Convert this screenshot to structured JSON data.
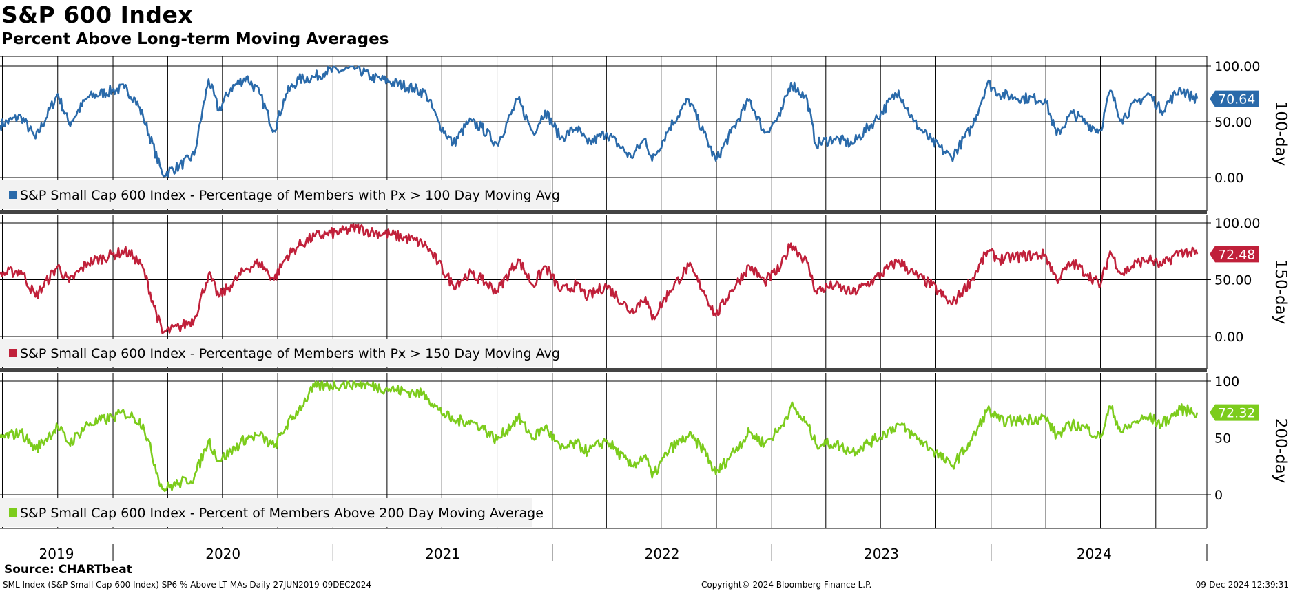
{
  "header": {
    "title": "S&P 600 Index",
    "subtitle": "Percent Above Long-term Moving Averages"
  },
  "footer": {
    "source": "Source: CHARTbeat",
    "description": "SML Index (S&P Small Cap 600 Index) SP6 % Above LT MAs  Daily 27JUN2019-09DEC2024",
    "copyright": "Copyright© 2024 Bloomberg Finance L.P.",
    "timestamp": "09-Dec-2024 12:39:31"
  },
  "chart_data": {
    "type": "line",
    "x_axis": {
      "start": "2019-06-27",
      "end": "2024-12-09",
      "year_labels": [
        "2019",
        "2020",
        "2021",
        "2022",
        "2023",
        "2024"
      ]
    },
    "grid": true,
    "panels": [
      {
        "id": "p100",
        "side_label": "100-day",
        "legend": "S&P Small Cap 600 Index - Percentage of Members with Px > 100 Day Moving Avg",
        "color": "#2a6aaa",
        "y_ticks": [
          "100.00",
          "50.00",
          "0.00"
        ],
        "ylim": [
          -25,
          105
        ],
        "last_value": "70.64",
        "points": [
          [
            "2019-06-27",
            47
          ],
          [
            "2019-08-01",
            55
          ],
          [
            "2019-08-25",
            35
          ],
          [
            "2019-10-01",
            75
          ],
          [
            "2019-10-20",
            48
          ],
          [
            "2019-11-20",
            72
          ],
          [
            "2019-12-31",
            78
          ],
          [
            "2020-01-20",
            80
          ],
          [
            "2020-02-05",
            72
          ],
          [
            "2020-02-20",
            55
          ],
          [
            "2020-03-23",
            3
          ],
          [
            "2020-04-20",
            10
          ],
          [
            "2020-05-15",
            20
          ],
          [
            "2020-06-08",
            88
          ],
          [
            "2020-06-25",
            60
          ],
          [
            "2020-07-15",
            80
          ],
          [
            "2020-08-10",
            90
          ],
          [
            "2020-09-01",
            75
          ],
          [
            "2020-09-25",
            42
          ],
          [
            "2020-10-15",
            75
          ],
          [
            "2020-11-05",
            88
          ],
          [
            "2020-12-01",
            90
          ],
          [
            "2020-12-20",
            95
          ],
          [
            "2021-01-15",
            96
          ],
          [
            "2021-02-10",
            98
          ],
          [
            "2021-03-05",
            90
          ],
          [
            "2021-04-05",
            86
          ],
          [
            "2021-05-15",
            80
          ],
          [
            "2021-06-05",
            75
          ],
          [
            "2021-06-25",
            50
          ],
          [
            "2021-07-20",
            30
          ],
          [
            "2021-08-15",
            50
          ],
          [
            "2021-09-05",
            45
          ],
          [
            "2021-10-01",
            30
          ],
          [
            "2021-11-05",
            70
          ],
          [
            "2021-11-30",
            40
          ],
          [
            "2021-12-20",
            60
          ],
          [
            "2022-01-15",
            35
          ],
          [
            "2022-02-10",
            45
          ],
          [
            "2022-03-01",
            30
          ],
          [
            "2022-04-01",
            40
          ],
          [
            "2022-05-12",
            18
          ],
          [
            "2022-06-05",
            35
          ],
          [
            "2022-06-16",
            15
          ],
          [
            "2022-07-15",
            45
          ],
          [
            "2022-08-16",
            70
          ],
          [
            "2022-09-10",
            40
          ],
          [
            "2022-09-30",
            15
          ],
          [
            "2022-10-25",
            40
          ],
          [
            "2022-11-25",
            70
          ],
          [
            "2022-12-20",
            40
          ],
          [
            "2023-01-15",
            55
          ],
          [
            "2023-02-02",
            85
          ],
          [
            "2023-03-01",
            70
          ],
          [
            "2023-03-15",
            30
          ],
          [
            "2023-04-15",
            35
          ],
          [
            "2023-05-15",
            30
          ],
          [
            "2023-06-20",
            50
          ],
          [
            "2023-07-31",
            78
          ],
          [
            "2023-08-25",
            50
          ],
          [
            "2023-09-25",
            32
          ],
          [
            "2023-10-27",
            18
          ],
          [
            "2023-11-30",
            45
          ],
          [
            "2023-12-26",
            85
          ],
          [
            "2024-01-15",
            75
          ],
          [
            "2024-02-10",
            72
          ],
          [
            "2024-03-31",
            70
          ],
          [
            "2024-04-19",
            38
          ],
          [
            "2024-05-15",
            58
          ],
          [
            "2024-06-10",
            48
          ],
          [
            "2024-07-01",
            42
          ],
          [
            "2024-07-17",
            78
          ],
          [
            "2024-08-05",
            52
          ],
          [
            "2024-08-31",
            68
          ],
          [
            "2024-09-20",
            75
          ],
          [
            "2024-10-10",
            60
          ],
          [
            "2024-11-11",
            80
          ],
          [
            "2024-11-25",
            74
          ],
          [
            "2024-12-09",
            70.64
          ]
        ]
      },
      {
        "id": "p150",
        "side_label": "150-day",
        "legend": "S&P Small Cap 600 Index - Percentage of Members with Px > 150 Day Moving Avg",
        "color": "#c0203a",
        "y_ticks": [
          "100.00",
          "50.00",
          "0.00"
        ],
        "ylim": [
          -27,
          105
        ],
        "last_value": "72.48",
        "points": [
          [
            "2019-06-27",
            55
          ],
          [
            "2019-08-01",
            58
          ],
          [
            "2019-08-25",
            35
          ],
          [
            "2019-10-01",
            62
          ],
          [
            "2019-10-20",
            48
          ],
          [
            "2019-11-20",
            65
          ],
          [
            "2019-12-31",
            72
          ],
          [
            "2020-01-20",
            75
          ],
          [
            "2020-02-05",
            70
          ],
          [
            "2020-02-20",
            60
          ],
          [
            "2020-03-23",
            3
          ],
          [
            "2020-04-20",
            8
          ],
          [
            "2020-05-15",
            15
          ],
          [
            "2020-06-08",
            55
          ],
          [
            "2020-06-25",
            35
          ],
          [
            "2020-07-15",
            45
          ],
          [
            "2020-08-10",
            60
          ],
          [
            "2020-09-01",
            65
          ],
          [
            "2020-09-25",
            50
          ],
          [
            "2020-10-15",
            70
          ],
          [
            "2020-11-05",
            80
          ],
          [
            "2020-12-01",
            88
          ],
          [
            "2020-12-20",
            90
          ],
          [
            "2021-01-15",
            92
          ],
          [
            "2021-02-10",
            96
          ],
          [
            "2021-03-05",
            92
          ],
          [
            "2021-04-05",
            90
          ],
          [
            "2021-05-15",
            85
          ],
          [
            "2021-06-05",
            80
          ],
          [
            "2021-06-25",
            65
          ],
          [
            "2021-07-20",
            45
          ],
          [
            "2021-08-15",
            55
          ],
          [
            "2021-09-05",
            50
          ],
          [
            "2021-10-01",
            40
          ],
          [
            "2021-11-05",
            68
          ],
          [
            "2021-11-30",
            45
          ],
          [
            "2021-12-20",
            62
          ],
          [
            "2022-01-15",
            40
          ],
          [
            "2022-02-10",
            45
          ],
          [
            "2022-03-01",
            35
          ],
          [
            "2022-04-01",
            45
          ],
          [
            "2022-05-12",
            22
          ],
          [
            "2022-06-05",
            35
          ],
          [
            "2022-06-16",
            15
          ],
          [
            "2022-07-15",
            40
          ],
          [
            "2022-08-16",
            62
          ],
          [
            "2022-09-10",
            40
          ],
          [
            "2022-09-30",
            18
          ],
          [
            "2022-10-25",
            40
          ],
          [
            "2022-11-25",
            62
          ],
          [
            "2022-12-20",
            48
          ],
          [
            "2023-01-15",
            60
          ],
          [
            "2023-02-02",
            82
          ],
          [
            "2023-03-01",
            65
          ],
          [
            "2023-03-15",
            40
          ],
          [
            "2023-04-15",
            45
          ],
          [
            "2023-05-15",
            38
          ],
          [
            "2023-06-20",
            50
          ],
          [
            "2023-07-31",
            67
          ],
          [
            "2023-08-25",
            55
          ],
          [
            "2023-09-25",
            45
          ],
          [
            "2023-10-27",
            28
          ],
          [
            "2023-11-30",
            50
          ],
          [
            "2023-12-26",
            75
          ],
          [
            "2024-01-15",
            68
          ],
          [
            "2024-02-10",
            70
          ],
          [
            "2024-03-31",
            72
          ],
          [
            "2024-04-19",
            50
          ],
          [
            "2024-05-15",
            65
          ],
          [
            "2024-06-10",
            55
          ],
          [
            "2024-07-01",
            45
          ],
          [
            "2024-07-17",
            75
          ],
          [
            "2024-08-05",
            55
          ],
          [
            "2024-08-31",
            65
          ],
          [
            "2024-09-20",
            68
          ],
          [
            "2024-10-10",
            62
          ],
          [
            "2024-11-11",
            75
          ],
          [
            "2024-11-25",
            74
          ],
          [
            "2024-12-09",
            72.48
          ]
        ]
      },
      {
        "id": "p200",
        "side_label": "200-day",
        "legend": "S&P Small Cap 600 Index - Percent of Members Above 200 Day Moving Average",
        "color": "#7ccc1c",
        "y_ticks": [
          "100",
          "50",
          "0"
        ],
        "ylim": [
          -27,
          105
        ],
        "last_value": "72.32",
        "points": [
          [
            "2019-06-27",
            50
          ],
          [
            "2019-08-01",
            55
          ],
          [
            "2019-08-25",
            40
          ],
          [
            "2019-10-01",
            60
          ],
          [
            "2019-10-20",
            45
          ],
          [
            "2019-11-20",
            62
          ],
          [
            "2019-12-31",
            68
          ],
          [
            "2020-01-20",
            72
          ],
          [
            "2020-02-05",
            68
          ],
          [
            "2020-02-20",
            62
          ],
          [
            "2020-03-23",
            5
          ],
          [
            "2020-04-20",
            10
          ],
          [
            "2020-05-15",
            15
          ],
          [
            "2020-06-08",
            48
          ],
          [
            "2020-06-25",
            30
          ],
          [
            "2020-07-15",
            38
          ],
          [
            "2020-08-10",
            50
          ],
          [
            "2020-09-01",
            52
          ],
          [
            "2020-09-25",
            42
          ],
          [
            "2020-10-15",
            60
          ],
          [
            "2020-11-05",
            75
          ],
          [
            "2020-12-01",
            95
          ],
          [
            "2020-12-20",
            96
          ],
          [
            "2021-01-15",
            97
          ],
          [
            "2021-02-10",
            98
          ],
          [
            "2021-03-05",
            96
          ],
          [
            "2021-04-05",
            93
          ],
          [
            "2021-05-15",
            90
          ],
          [
            "2021-06-05",
            88
          ],
          [
            "2021-06-25",
            75
          ],
          [
            "2021-07-20",
            65
          ],
          [
            "2021-08-15",
            65
          ],
          [
            "2021-09-05",
            60
          ],
          [
            "2021-10-01",
            48
          ],
          [
            "2021-11-05",
            68
          ],
          [
            "2021-11-30",
            50
          ],
          [
            "2021-12-20",
            60
          ],
          [
            "2022-01-15",
            40
          ],
          [
            "2022-02-10",
            45
          ],
          [
            "2022-03-01",
            38
          ],
          [
            "2022-04-01",
            48
          ],
          [
            "2022-05-12",
            25
          ],
          [
            "2022-06-05",
            35
          ],
          [
            "2022-06-16",
            15
          ],
          [
            "2022-07-15",
            40
          ],
          [
            "2022-08-16",
            52
          ],
          [
            "2022-09-10",
            40
          ],
          [
            "2022-09-30",
            18
          ],
          [
            "2022-10-25",
            35
          ],
          [
            "2022-11-25",
            55
          ],
          [
            "2022-12-20",
            45
          ],
          [
            "2023-01-15",
            58
          ],
          [
            "2023-02-02",
            78
          ],
          [
            "2023-03-01",
            62
          ],
          [
            "2023-03-15",
            45
          ],
          [
            "2023-04-15",
            45
          ],
          [
            "2023-05-15",
            38
          ],
          [
            "2023-06-20",
            48
          ],
          [
            "2023-07-31",
            62
          ],
          [
            "2023-08-25",
            52
          ],
          [
            "2023-09-25",
            40
          ],
          [
            "2023-10-27",
            25
          ],
          [
            "2023-11-30",
            48
          ],
          [
            "2023-12-26",
            75
          ],
          [
            "2024-01-15",
            65
          ],
          [
            "2024-02-10",
            65
          ],
          [
            "2024-03-31",
            68
          ],
          [
            "2024-04-19",
            52
          ],
          [
            "2024-05-15",
            62
          ],
          [
            "2024-06-10",
            58
          ],
          [
            "2024-07-01",
            50
          ],
          [
            "2024-07-17",
            78
          ],
          [
            "2024-08-05",
            55
          ],
          [
            "2024-08-31",
            65
          ],
          [
            "2024-09-20",
            68
          ],
          [
            "2024-10-10",
            62
          ],
          [
            "2024-11-11",
            75
          ],
          [
            "2024-11-25",
            74
          ],
          [
            "2024-12-09",
            72.32
          ]
        ]
      }
    ]
  }
}
